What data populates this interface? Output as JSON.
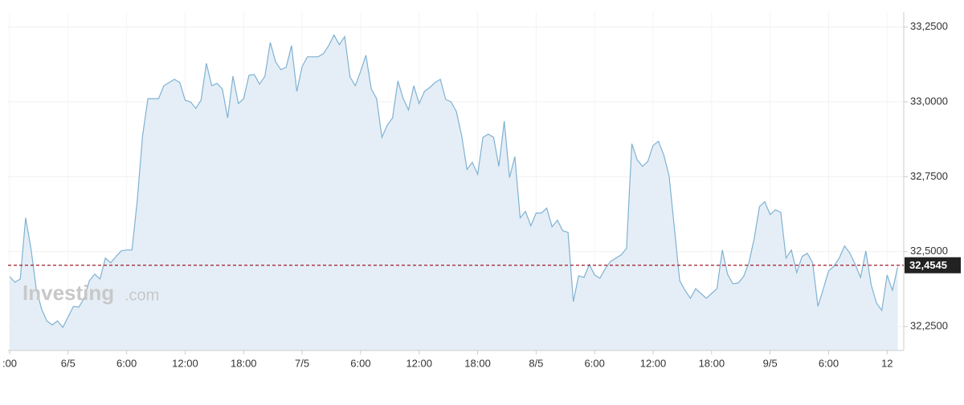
{
  "chart_data": {
    "type": "area",
    "watermark": [
      "Investing",
      ".com"
    ],
    "categories": [
      ":00",
      null,
      null,
      null,
      null,
      null,
      null,
      null,
      null,
      null,
      null,
      "6/5",
      null,
      null,
      null,
      null,
      null,
      null,
      null,
      null,
      null,
      null,
      "6:00",
      null,
      null,
      null,
      null,
      null,
      null,
      null,
      null,
      null,
      null,
      "12:00",
      null,
      null,
      null,
      null,
      null,
      null,
      null,
      null,
      null,
      null,
      "18:00",
      null,
      null,
      null,
      null,
      null,
      null,
      null,
      null,
      null,
      null,
      "7/5",
      null,
      null,
      null,
      null,
      null,
      null,
      null,
      null,
      null,
      null,
      "6:00",
      null,
      null,
      null,
      null,
      null,
      null,
      null,
      null,
      null,
      null,
      "12:00",
      null,
      null,
      null,
      null,
      null,
      null,
      null,
      null,
      null,
      null,
      "18:00",
      null,
      null,
      null,
      null,
      null,
      null,
      null,
      null,
      null,
      null,
      "8/5",
      null,
      null,
      null,
      null,
      null,
      null,
      null,
      null,
      null,
      null,
      "6:00",
      null,
      null,
      null,
      null,
      null,
      null,
      null,
      null,
      null,
      null,
      "12:00",
      null,
      null,
      null,
      null,
      null,
      null,
      null,
      null,
      null,
      null,
      "18:00",
      null,
      null,
      null,
      null,
      null,
      null,
      null,
      null,
      null,
      null,
      "9/5",
      null,
      null,
      null,
      null,
      null,
      null,
      null,
      null,
      null,
      null,
      "6:00",
      null,
      null,
      null,
      null,
      null,
      null,
      null,
      null,
      null,
      null,
      "12",
      null,
      null
    ],
    "series": [
      {
        "color": "#7fb2d3",
        "fill": "#e5eef6",
        "values": [
          32.4167,
          32.3978,
          32.4086,
          32.6129,
          32.5108,
          32.3763,
          32.3091,
          32.2688,
          32.2554,
          32.2688,
          32.2473,
          32.2823,
          32.3172,
          32.3145,
          32.3441,
          32.4032,
          32.4247,
          32.4086,
          32.4785,
          32.4624,
          32.4839,
          32.5027,
          32.5054,
          32.5054,
          32.672,
          32.8871,
          33.0108,
          33.0108,
          33.0108,
          33.0538,
          33.0645,
          33.0753,
          33.0645,
          33.0054,
          33.0,
          32.9785,
          33.0054,
          33.129,
          33.0538,
          33.0618,
          33.043,
          32.9462,
          33.086,
          32.9946,
          33.0108,
          33.0887,
          33.0914,
          33.0591,
          33.086,
          33.1989,
          33.1344,
          33.1075,
          33.1156,
          33.1882,
          33.0349,
          33.1183,
          33.1505,
          33.1505,
          33.1505,
          33.1613,
          33.1882,
          33.2231,
          33.1909,
          33.2177,
          33.0833,
          33.0538,
          33.1022,
          33.1559,
          33.043,
          33.0108,
          32.8817,
          32.922,
          32.9462,
          33.0699,
          33.0108,
          32.9731,
          33.0538,
          32.9946,
          33.0349,
          33.0484,
          33.0645,
          33.0753,
          33.0081,
          33.0,
          32.9677,
          32.8871,
          32.7742,
          32.7984,
          32.7581,
          32.8817,
          32.8925,
          32.8817,
          32.7849,
          32.9355,
          32.7473,
          32.8172,
          32.6129,
          32.6344,
          32.586,
          32.629,
          32.629,
          32.6452,
          32.5833,
          32.6048,
          32.5699,
          32.5645,
          32.3333,
          32.4194,
          32.414,
          32.457,
          32.422,
          32.4113,
          32.4435,
          32.4677,
          32.4785,
          32.4892,
          32.5108,
          32.8602,
          32.8065,
          32.7849,
          32.8011,
          32.8548,
          32.8683,
          32.8226,
          32.7527,
          32.578,
          32.4032,
          32.371,
          32.3441,
          32.3763,
          32.3602,
          32.3441,
          32.3602,
          32.3763,
          32.5054,
          32.4247,
          32.3925,
          32.3952,
          32.4167,
          32.4624,
          32.543,
          32.6505,
          32.6667,
          32.6237,
          32.6398,
          32.6317,
          32.4785,
          32.5054,
          32.4301,
          32.4839,
          32.4946,
          32.4624,
          32.3172,
          32.3763,
          32.4355,
          32.4516,
          32.4785,
          32.5188,
          32.4946,
          32.457,
          32.414,
          32.5023,
          32.3898,
          32.328,
          32.3038,
          32.422,
          32.371,
          32.4489
        ]
      }
    ],
    "reference_line": {
      "value": 32.4545,
      "label": "32,4545",
      "color": "#a0182a"
    },
    "ylim": [
      32.17,
      33.3
    ],
    "yticks": [
      {
        "value": 32.25,
        "label": "32,2500"
      },
      {
        "value": 32.5,
        "label": "32,5000"
      },
      {
        "value": 32.75,
        "label": "32,7500"
      },
      {
        "value": 33.0,
        "label": "33,0000"
      },
      {
        "value": 33.25,
        "label": "33,2500"
      }
    ],
    "grid": true
  }
}
